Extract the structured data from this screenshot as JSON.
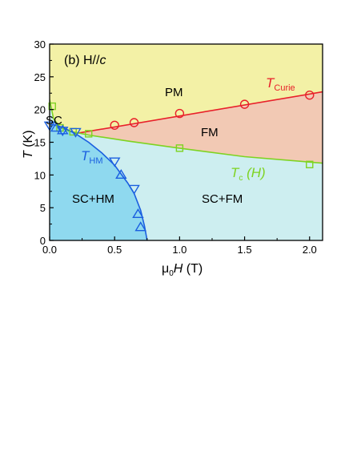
{
  "chart_data": {
    "type": "scatter",
    "panel_label": "(b) H//",
    "panel_label_italic": "c",
    "xlabel_prefix": "μ",
    "xlabel_sub": "0",
    "xlabel_main": "H",
    "xlabel_unit": " (T)",
    "ylabel_main": "T",
    "ylabel_unit": " (K)",
    "xlim": [
      0,
      2.1
    ],
    "ylim": [
      0,
      30
    ],
    "xticks": [
      "0.0",
      "0.5",
      "1.0",
      "1.5",
      "2.0"
    ],
    "yticks": [
      "0",
      "5",
      "10",
      "15",
      "20",
      "25",
      "30"
    ],
    "regions": [
      {
        "label": "PM",
        "color": "#f3f1a6"
      },
      {
        "label": "FM",
        "color": "#f2c9b4"
      },
      {
        "label": "SC+FM",
        "color": "#cdeef0"
      },
      {
        "label": "SC+HM",
        "color": "#8fd9ef"
      },
      {
        "label": "SC",
        "color": "#8fd9ef"
      }
    ],
    "series": [
      {
        "name": "T_Curie",
        "label_main": "T",
        "label_sub": "Curie",
        "color": "#e8202a",
        "marker": "circle",
        "points": [
          [
            0.5,
            17.6
          ],
          [
            0.65,
            18.0
          ],
          [
            1.0,
            19.4
          ],
          [
            1.5,
            20.8
          ],
          [
            2.0,
            22.2
          ]
        ],
        "fit": [
          [
            0.22,
            16.4
          ],
          [
            2.1,
            22.7
          ]
        ]
      },
      {
        "name": "T_c(H)",
        "label_main": "T",
        "label_sub": "c",
        "label_tail": " (H)",
        "color": "#7ed321",
        "marker": "square",
        "points": [
          [
            0.02,
            20.5
          ],
          [
            0.08,
            17.2
          ],
          [
            0.18,
            16.6
          ],
          [
            0.3,
            16.3
          ],
          [
            1.0,
            14.1
          ],
          [
            2.0,
            11.6
          ]
        ],
        "fit": [
          [
            0.0,
            21.5
          ],
          [
            0.03,
            18.6
          ],
          [
            0.08,
            17.3
          ],
          [
            0.15,
            16.7
          ],
          [
            0.3,
            16.1
          ],
          [
            0.6,
            15.2
          ],
          [
            1.0,
            14.1
          ],
          [
            1.5,
            12.8
          ],
          [
            2.1,
            11.8
          ]
        ]
      },
      {
        "name": "T_HM",
        "label_main": "T",
        "label_sub": "HM",
        "color": "#1a5fe0",
        "marker": "triangle",
        "points_down": [
          [
            0.0,
            17.6
          ],
          [
            0.1,
            16.8
          ],
          [
            0.2,
            16.6
          ],
          [
            0.5,
            12.1
          ],
          [
            0.65,
            7.9
          ]
        ],
        "points_up": [
          [
            0.05,
            17.2
          ],
          [
            0.1,
            16.8
          ],
          [
            0.55,
            10.0
          ],
          [
            0.68,
            4.0
          ],
          [
            0.7,
            2.0
          ]
        ],
        "fit": [
          [
            0.0,
            17.8
          ],
          [
            0.1,
            17.3
          ],
          [
            0.2,
            16.3
          ],
          [
            0.3,
            15.0
          ],
          [
            0.4,
            13.4
          ],
          [
            0.5,
            11.5
          ],
          [
            0.6,
            8.8
          ],
          [
            0.65,
            7.2
          ],
          [
            0.7,
            4.6
          ],
          [
            0.73,
            2.2
          ],
          [
            0.75,
            0.0
          ]
        ]
      }
    ]
  }
}
